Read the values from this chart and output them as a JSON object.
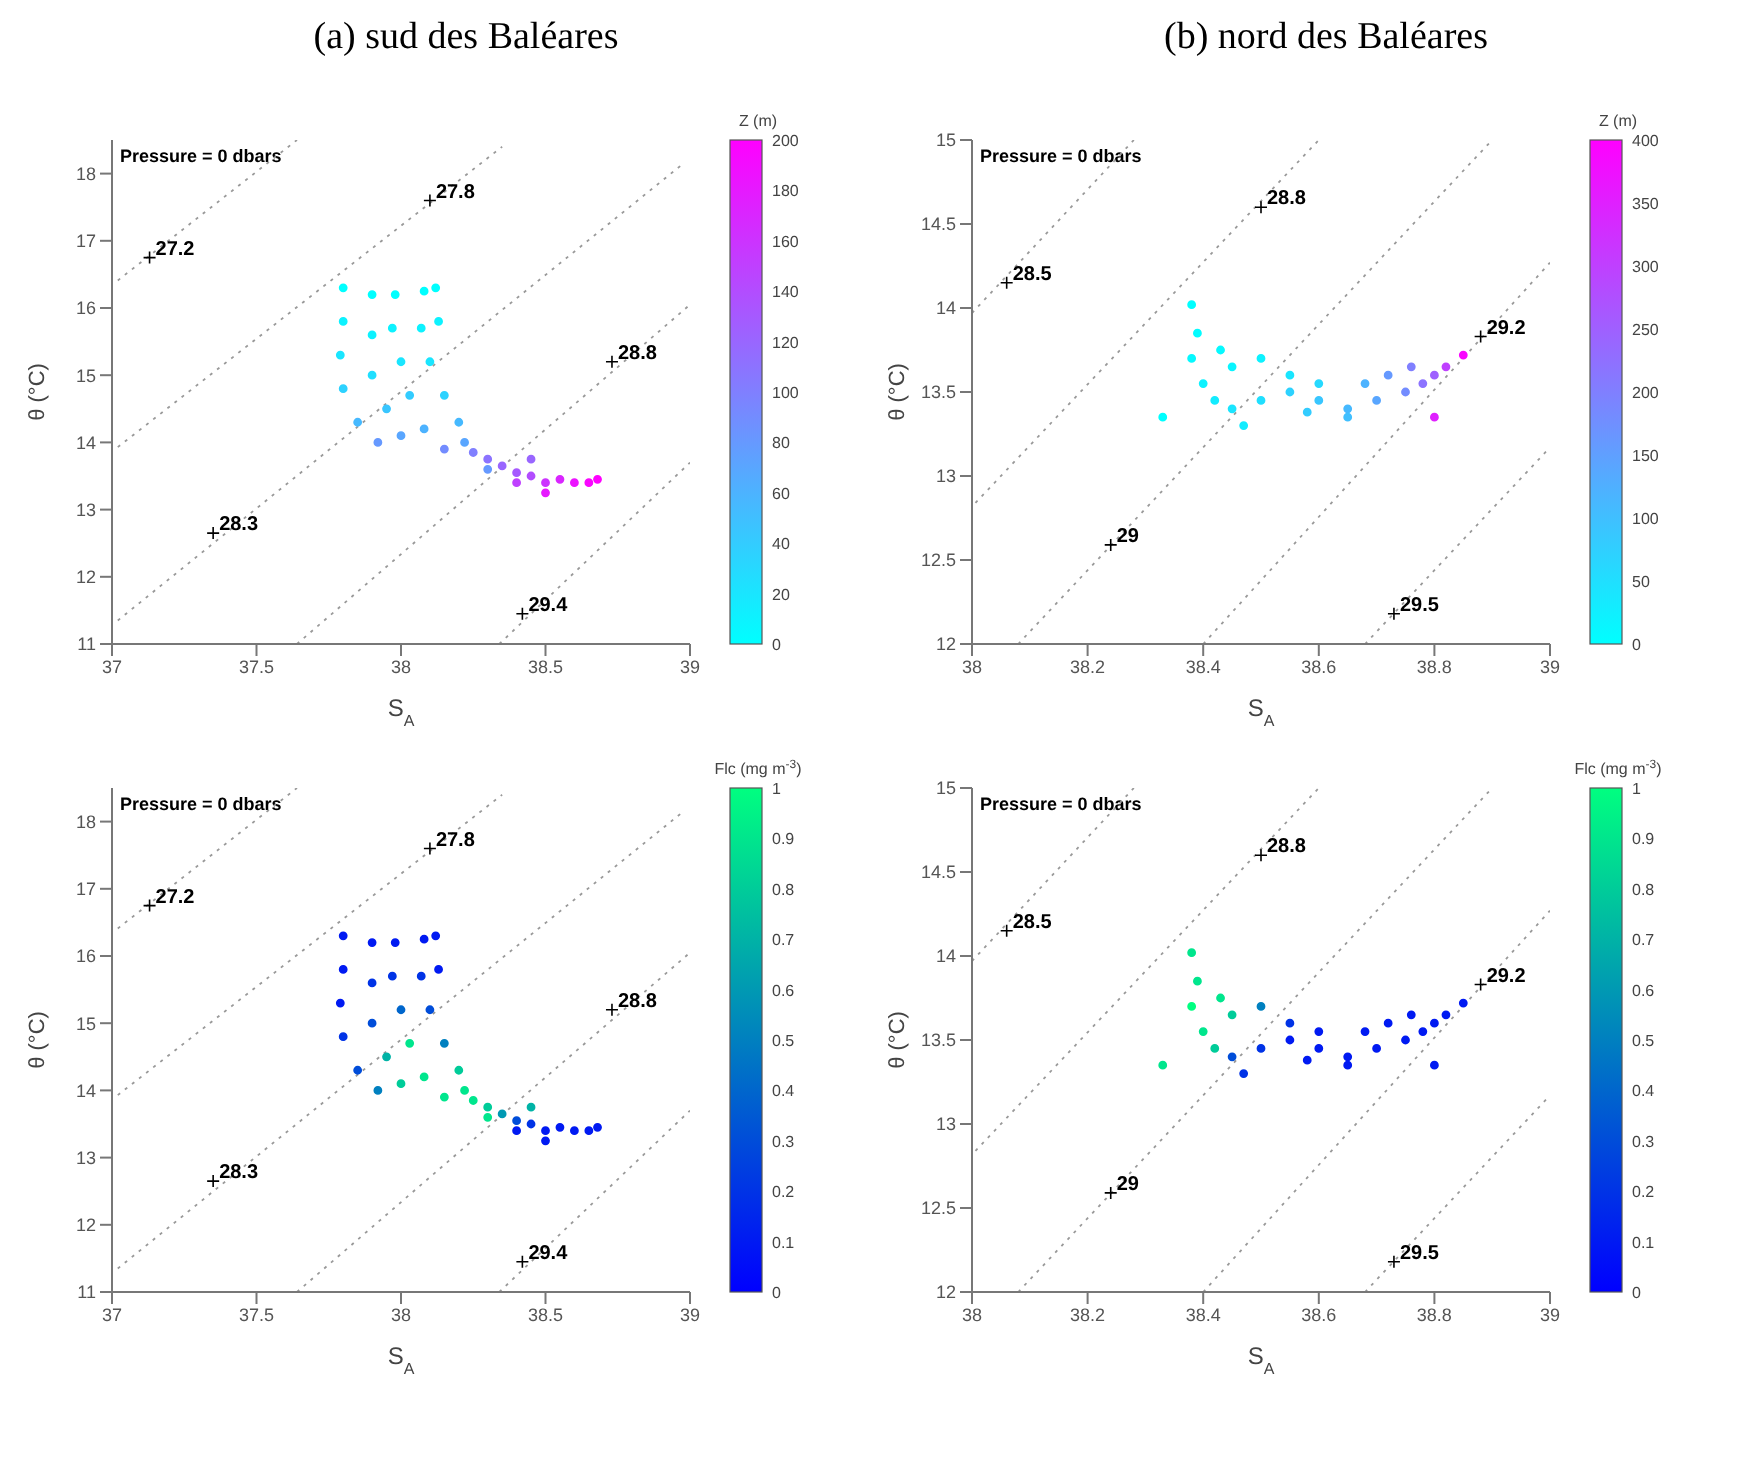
{
  "chart_data": [
    {
      "type": "scatter",
      "title": "(a) sud des Baléares",
      "xlabel": "S$_{A}$",
      "ylabel": "θ (°C)",
      "clabel": "Z (m)",
      "colors": [
        "#00ffff",
        "#ff00ff"
      ],
      "clim": [
        0,
        200
      ],
      "cticks": [
        0,
        20,
        40,
        60,
        80,
        100,
        120,
        140,
        160,
        180,
        200
      ],
      "xlim": [
        37,
        39
      ],
      "ylim": [
        11,
        18.5
      ],
      "xticks": [
        37,
        37.5,
        38,
        38.5,
        39
      ],
      "yticks": [
        11,
        12,
        13,
        14,
        15,
        16,
        17,
        18
      ],
      "grid": false,
      "legend": false,
      "annotations": [
        "Pressure = 0 dbars",
        {
          "text": "27.2",
          "x": 37.13,
          "y": 16.75
        },
        {
          "text": "27.8",
          "x": 38.1,
          "y": 17.6
        },
        {
          "text": "28.3",
          "x": 37.35,
          "y": 12.65
        },
        {
          "text": "28.8",
          "x": 38.73,
          "y": 15.2
        },
        {
          "text": "29.4",
          "x": 38.42,
          "y": 11.45
        }
      ],
      "series": [
        {
          "type": "line",
          "color": "#999999",
          "line_style": "dotted",
          "marker": "none",
          "x": [
            37.02,
            37.64
          ],
          "values": [
            16.41,
            18.5
          ]
        },
        {
          "type": "line",
          "color": "#999999",
          "line_style": "dotted",
          "marker": "none",
          "x": [
            37.02,
            38.35
          ],
          "values": [
            13.93,
            18.4
          ]
        },
        {
          "type": "line",
          "color": "#999999",
          "line_style": "dotted",
          "marker": "none",
          "x": [
            37.02,
            38.98
          ],
          "values": [
            11.35,
            18.16
          ]
        },
        {
          "type": "line",
          "color": "#999999",
          "line_style": "dotted",
          "marker": "none",
          "x": [
            37.64,
            39
          ],
          "values": [
            11,
            16.05
          ]
        },
        {
          "type": "line",
          "color": "#999999",
          "line_style": "dotted",
          "marker": "none",
          "x": [
            38.34,
            39
          ],
          "values": [
            11,
            13.7
          ]
        },
        {
          "marker": "circle",
          "colors": [
            "#00ffff",
            "#0df2ff",
            "#1ae5ff",
            "#2dd2ff",
            "#46b9ff",
            "#6699ff",
            "#00ffff",
            "#0df2ff",
            "#20dfff",
            "#39c6ff",
            "#59a6ff",
            "#00ffff",
            "#0df2ff",
            "#1ae5ff",
            "#33ccff",
            "#4db2ff",
            "#00ffff",
            "#0df2ff",
            "#1ae5ff",
            "#2dd2ff",
            "#46b9ff",
            "#59a6ff",
            "#00ffff",
            "#0df2ff",
            "#738cff",
            "#807fff",
            "#8c73ff",
            "#9966ff",
            "#a659ff",
            "#b24dff",
            "#cc33ff",
            "#d926ff",
            "#ec13ff",
            "#f906ff",
            "#ff00ff",
            "#e619ff",
            "#9966ff",
            "#6699ff",
            "#bf40ff"
          ],
          "x": [
            37.8,
            37.8,
            37.79,
            37.8,
            37.85,
            37.92,
            37.9,
            37.9,
            37.9,
            37.95,
            38.0,
            37.98,
            37.97,
            38.0,
            38.03,
            38.08,
            38.08,
            38.07,
            38.1,
            38.15,
            38.2,
            38.22,
            38.12,
            38.13,
            38.15,
            38.25,
            38.3,
            38.35,
            38.4,
            38.45,
            38.5,
            38.55,
            38.6,
            38.65,
            38.68,
            38.5,
            38.45,
            38.3,
            38.4
          ],
          "values": [
            16.3,
            15.8,
            15.3,
            14.8,
            14.3,
            14.0,
            16.2,
            15.6,
            15.0,
            14.5,
            14.1,
            16.2,
            15.7,
            15.2,
            14.7,
            14.2,
            16.25,
            15.7,
            15.2,
            14.7,
            14.3,
            14.0,
            16.3,
            15.8,
            13.9,
            13.85,
            13.75,
            13.65,
            13.55,
            13.5,
            13.4,
            13.45,
            13.4,
            13.4,
            13.45,
            13.25,
            13.75,
            13.6,
            13.4
          ],
          "cvalues": [
            0,
            10,
            20,
            35,
            55,
            80,
            0,
            10,
            25,
            45,
            70,
            0,
            10,
            20,
            40,
            60,
            0,
            10,
            20,
            35,
            55,
            70,
            0,
            10,
            90,
            100,
            110,
            120,
            130,
            140,
            160,
            170,
            185,
            195,
            200,
            180,
            120,
            80,
            150
          ]
        }
      ]
    },
    {
      "type": "scatter",
      "title": "(b) nord des Baléares",
      "xlabel": "S$_{A}$",
      "ylabel": "θ (°C)",
      "clabel": "Z (m)",
      "colors": [
        "#00ffff",
        "#ff00ff"
      ],
      "clim": [
        0,
        400
      ],
      "cticks": [
        0,
        50,
        100,
        150,
        200,
        250,
        300,
        350,
        400
      ],
      "xlim": [
        38,
        39
      ],
      "ylim": [
        12,
        15
      ],
      "xticks": [
        38,
        38.2,
        38.4,
        38.6,
        38.8,
        39
      ],
      "yticks": [
        12,
        12.5,
        13,
        13.5,
        14,
        14.5,
        15
      ],
      "grid": false,
      "legend": false,
      "annotations": [
        "Pressure = 0 dbars",
        {
          "text": "28.5",
          "x": 38.06,
          "y": 14.15
        },
        {
          "text": "28.8",
          "x": 38.5,
          "y": 14.6
        },
        {
          "text": "29",
          "x": 38.24,
          "y": 12.59
        },
        {
          "text": "29.2",
          "x": 38.88,
          "y": 13.83
        },
        {
          "text": "29.5",
          "x": 38.73,
          "y": 12.18
        }
      ],
      "series": [
        {
          "type": "line",
          "color": "#999999",
          "line_style": "dotted",
          "marker": "none",
          "x": [
            38.0,
            38.28
          ],
          "values": [
            13.97,
            15
          ]
        },
        {
          "type": "line",
          "color": "#999999",
          "line_style": "dotted",
          "marker": "none",
          "x": [
            38.006,
            38.6
          ],
          "values": [
            12.84,
            15
          ]
        },
        {
          "type": "line",
          "color": "#999999",
          "line_style": "dotted",
          "marker": "none",
          "x": [
            38.08,
            38.9
          ],
          "values": [
            12,
            15
          ]
        },
        {
          "type": "line",
          "color": "#999999",
          "line_style": "dotted",
          "marker": "none",
          "x": [
            38.4,
            39
          ],
          "values": [
            12,
            14.27
          ]
        },
        {
          "type": "line",
          "color": "#999999",
          "line_style": "dotted",
          "marker": "none",
          "x": [
            38.68,
            39
          ],
          "values": [
            12,
            13.17
          ]
        },
        {
          "marker": "circle",
          "colors": [
            "#00ffff",
            "#03fcff",
            "#06f9ff",
            "#0df2ff",
            "#13ecff",
            "#1ae5ff",
            "#20dfff",
            "#2dd2ff",
            "#39c6ff",
            "#46b9ff",
            "#59a6ff",
            "#738cff",
            "#9f60ff",
            "#f906ff",
            "#bf40ff",
            "#8c73ff",
            "#df20ff",
            "#0af5ff",
            "#0df2ff",
            "#1ae5ff",
            "#26d9ff",
            "#4db2ff",
            "#6699ff",
            "#807fff",
            "#06f9ff",
            "#00ffff",
            "#13ecff",
            "#40bfff",
            "#33ccff"
          ],
          "x": [
            38.38,
            38.39,
            38.38,
            38.4,
            38.42,
            38.45,
            38.5,
            38.55,
            38.6,
            38.65,
            38.7,
            38.75,
            38.8,
            38.85,
            38.82,
            38.78,
            38.8,
            38.45,
            38.5,
            38.55,
            38.6,
            38.68,
            38.72,
            38.76,
            38.43,
            38.33,
            38.47,
            38.65,
            38.58
          ],
          "values": [
            14.02,
            13.85,
            13.7,
            13.55,
            13.45,
            13.4,
            13.45,
            13.5,
            13.45,
            13.4,
            13.45,
            13.5,
            13.6,
            13.72,
            13.65,
            13.55,
            13.35,
            13.65,
            13.7,
            13.6,
            13.55,
            13.55,
            13.6,
            13.65,
            13.75,
            13.35,
            13.3,
            13.35,
            13.38
          ],
          "cvalues": [
            0,
            5,
            10,
            20,
            30,
            40,
            50,
            70,
            90,
            110,
            140,
            180,
            250,
            390,
            300,
            220,
            350,
            15,
            20,
            40,
            60,
            120,
            160,
            200,
            10,
            0,
            30,
            100,
            80
          ]
        }
      ]
    },
    {
      "type": "scatter",
      "xlabel": "S$_{A}$",
      "ylabel": "θ (°C)",
      "clabel": "Flc (mg m$^{-3}$)",
      "colors": [
        "#0000ff",
        "#00ff80"
      ],
      "clim": [
        0,
        1
      ],
      "cticks": [
        0,
        0.1,
        0.2,
        0.3,
        0.4,
        0.5,
        0.6,
        0.7,
        0.8,
        0.9,
        1
      ],
      "xlim": [
        37,
        39
      ],
      "ylim": [
        11,
        18.5
      ],
      "xticks": [
        37,
        37.5,
        38,
        38.5,
        39
      ],
      "yticks": [
        11,
        12,
        13,
        14,
        15,
        16,
        17,
        18
      ],
      "grid": false,
      "legend": false,
      "annotations": [
        "Pressure = 0 dbars",
        {
          "text": "27.2",
          "x": 37.13,
          "y": 16.75
        },
        {
          "text": "27.8",
          "x": 38.1,
          "y": 17.6
        },
        {
          "text": "28.3",
          "x": 37.35,
          "y": 12.65
        },
        {
          "text": "28.8",
          "x": 38.73,
          "y": 15.2
        },
        {
          "text": "29.4",
          "x": 38.42,
          "y": 11.45
        }
      ],
      "series": [
        {
          "type": "line",
          "color": "#999999",
          "line_style": "dotted",
          "marker": "none",
          "x": [
            37.02,
            37.64
          ],
          "values": [
            16.41,
            18.5
          ]
        },
        {
          "type": "line",
          "color": "#999999",
          "line_style": "dotted",
          "marker": "none",
          "x": [
            37.02,
            38.35
          ],
          "values": [
            13.93,
            18.4
          ]
        },
        {
          "type": "line",
          "color": "#999999",
          "line_style": "dotted",
          "marker": "none",
          "x": [
            37.02,
            38.98
          ],
          "values": [
            11.35,
            18.16
          ]
        },
        {
          "type": "line",
          "color": "#999999",
          "line_style": "dotted",
          "marker": "none",
          "x": [
            37.64,
            39
          ],
          "values": [
            11,
            16.05
          ]
        },
        {
          "type": "line",
          "color": "#999999",
          "line_style": "dotted",
          "marker": "none",
          "x": [
            38.34,
            39
          ],
          "values": [
            11,
            13.7
          ]
        },
        {
          "marker": "circle",
          "colors": [
            "#001af2",
            "#001af2",
            "#001af2",
            "#0033e6",
            "#004dd9",
            "#0080bf",
            "#001af2",
            "#0033e6",
            "#004dd9",
            "#00b3a6",
            "#00cc99",
            "#001af2",
            "#0033e6",
            "#0066cc",
            "#00e68d",
            "#00e68d",
            "#001af2",
            "#0033e6",
            "#004dd9",
            "#0080bf",
            "#00cc99",
            "#00e68d",
            "#001af2",
            "#001af2",
            "#00e68d",
            "#00e68d",
            "#00cc99",
            "#0099b3",
            "#004dd9",
            "#0033e6",
            "#001af2",
            "#001af2",
            "#001af2",
            "#001af2",
            "#001af2",
            "#001af2",
            "#00b3a6",
            "#00e68d",
            "#001af2"
          ],
          "x": [
            37.8,
            37.8,
            37.79,
            37.8,
            37.85,
            37.92,
            37.9,
            37.9,
            37.9,
            37.95,
            38.0,
            37.98,
            37.97,
            38.0,
            38.03,
            38.08,
            38.08,
            38.07,
            38.1,
            38.15,
            38.2,
            38.22,
            38.12,
            38.13,
            38.15,
            38.25,
            38.3,
            38.35,
            38.4,
            38.45,
            38.5,
            38.55,
            38.6,
            38.65,
            38.68,
            38.5,
            38.45,
            38.3,
            38.4
          ],
          "values": [
            16.3,
            15.8,
            15.3,
            14.8,
            14.3,
            14.0,
            16.2,
            15.6,
            15.0,
            14.5,
            14.1,
            16.2,
            15.7,
            15.2,
            14.7,
            14.2,
            16.25,
            15.7,
            15.2,
            14.7,
            14.3,
            14.0,
            16.3,
            15.8,
            13.9,
            13.85,
            13.75,
            13.65,
            13.55,
            13.5,
            13.4,
            13.45,
            13.4,
            13.4,
            13.45,
            13.25,
            13.75,
            13.6,
            13.4
          ],
          "cvalues": [
            0.1,
            0.1,
            0.1,
            0.2,
            0.3,
            0.5,
            0.1,
            0.2,
            0.3,
            0.7,
            0.8,
            0.1,
            0.2,
            0.4,
            0.9,
            0.9,
            0.1,
            0.2,
            0.3,
            0.5,
            0.8,
            0.9,
            0.1,
            0.1,
            0.9,
            0.9,
            0.8,
            0.6,
            0.3,
            0.2,
            0.1,
            0.1,
            0.1,
            0.1,
            0.1,
            0.1,
            0.7,
            0.9,
            0.1
          ]
        }
      ]
    },
    {
      "type": "scatter",
      "xlabel": "S$_{A}$",
      "ylabel": "θ (°C)",
      "clabel": "Flc (mg m$^{-3}$)",
      "colors": [
        "#0000ff",
        "#00ff80"
      ],
      "clim": [
        0,
        1
      ],
      "cticks": [
        0,
        0.1,
        0.2,
        0.3,
        0.4,
        0.5,
        0.6,
        0.7,
        0.8,
        0.9,
        1
      ],
      "xlim": [
        38,
        39
      ],
      "ylim": [
        12,
        15
      ],
      "xticks": [
        38,
        38.2,
        38.4,
        38.6,
        38.8,
        39
      ],
      "yticks": [
        12,
        12.5,
        13,
        13.5,
        14,
        14.5,
        15
      ],
      "grid": false,
      "legend": false,
      "annotations": [
        "Pressure = 0 dbars",
        {
          "text": "28.5",
          "x": 38.06,
          "y": 14.15
        },
        {
          "text": "28.8",
          "x": 38.5,
          "y": 14.6
        },
        {
          "text": "29",
          "x": 38.24,
          "y": 12.59
        },
        {
          "text": "29.2",
          "x": 38.88,
          "y": 13.83
        },
        {
          "text": "29.5",
          "x": 38.73,
          "y": 12.18
        }
      ],
      "series": [
        {
          "type": "line",
          "color": "#999999",
          "line_style": "dotted",
          "marker": "none",
          "x": [
            38.0,
            38.28
          ],
          "values": [
            13.97,
            15
          ]
        },
        {
          "type": "line",
          "color": "#999999",
          "line_style": "dotted",
          "marker": "none",
          "x": [
            38.006,
            38.6
          ],
          "values": [
            12.84,
            15
          ]
        },
        {
          "type": "line",
          "color": "#999999",
          "line_style": "dotted",
          "marker": "none",
          "x": [
            38.08,
            38.9
          ],
          "values": [
            12,
            15
          ]
        },
        {
          "type": "line",
          "color": "#999999",
          "line_style": "dotted",
          "marker": "none",
          "x": [
            38.4,
            39
          ],
          "values": [
            12,
            14.27
          ]
        },
        {
          "type": "line",
          "color": "#999999",
          "line_style": "dotted",
          "marker": "none",
          "x": [
            38.68,
            39
          ],
          "values": [
            12,
            13.17
          ]
        },
        {
          "marker": "circle",
          "colors": [
            "#00e68d",
            "#00e68d",
            "#00ff80",
            "#00e68d",
            "#00cc99",
            "#004dd9",
            "#0033e6",
            "#001af2",
            "#001af2",
            "#001af2",
            "#001af2",
            "#001af2",
            "#001af2",
            "#001af2",
            "#001af2",
            "#001af2",
            "#001af2",
            "#00cc99",
            "#0080bf",
            "#0033e6",
            "#001af2",
            "#001af2",
            "#001af2",
            "#001af2",
            "#00e68d",
            "#00e68d",
            "#0033e6",
            "#001af2",
            "#001af2"
          ],
          "x": [
            38.38,
            38.39,
            38.38,
            38.4,
            38.42,
            38.45,
            38.5,
            38.55,
            38.6,
            38.65,
            38.7,
            38.75,
            38.8,
            38.85,
            38.82,
            38.78,
            38.8,
            38.45,
            38.5,
            38.55,
            38.6,
            38.68,
            38.72,
            38.76,
            38.43,
            38.33,
            38.47,
            38.65,
            38.58
          ],
          "values": [
            14.02,
            13.85,
            13.7,
            13.55,
            13.45,
            13.4,
            13.45,
            13.5,
            13.45,
            13.4,
            13.45,
            13.5,
            13.6,
            13.72,
            13.65,
            13.55,
            13.35,
            13.65,
            13.7,
            13.6,
            13.55,
            13.55,
            13.6,
            13.65,
            13.75,
            13.35,
            13.3,
            13.35,
            13.38
          ],
          "cvalues": [
            0.9,
            0.9,
            1,
            0.9,
            0.8,
            0.3,
            0.2,
            0.1,
            0.1,
            0.1,
            0.1,
            0.1,
            0.1,
            0.1,
            0.1,
            0.1,
            0.1,
            0.8,
            0.5,
            0.2,
            0.1,
            0.1,
            0.1,
            0.1,
            0.9,
            0.9,
            0.2,
            0.1,
            0.1
          ]
        }
      ]
    }
  ]
}
